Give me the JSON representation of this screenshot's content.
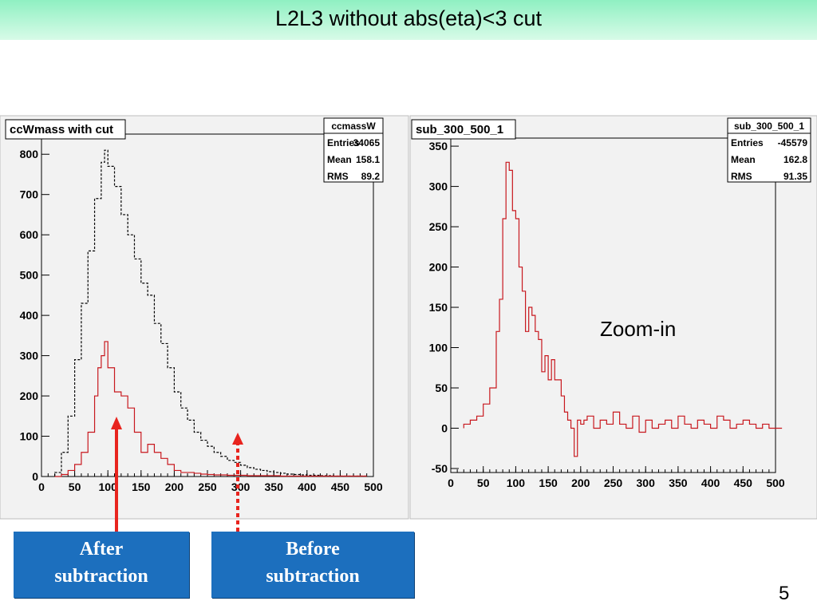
{
  "slide": {
    "title": "L2L3 without abs(eta)<3 cut",
    "page_number": "5",
    "zoom_label": "Zoom-in"
  },
  "callouts": {
    "after": [
      "After",
      "subtraction"
    ],
    "before": [
      "Before",
      "subtraction"
    ],
    "arrow_color_after": "#e8241e",
    "arrow_color_before": "#e8241e",
    "box_color": "#1c6fbe"
  },
  "colors": {
    "title_bar_top": "#8ff0c2",
    "frame_bg": "#f2f2f2",
    "before_line": "#000000",
    "after_line": "#c8181e"
  },
  "chart_data": [
    {
      "type": "line",
      "title": "ccWmass with cut",
      "stats": {
        "name": "ccmassW",
        "rows": [
          [
            "Entries",
            "34065"
          ],
          [
            "Mean",
            "158.1"
          ],
          [
            "RMS",
            "89.2"
          ]
        ]
      },
      "xlim": [
        0,
        500
      ],
      "ylim": [
        0,
        850
      ],
      "xticks": [
        "0",
        "50",
        "100",
        "150",
        "200",
        "250",
        "300",
        "350",
        "400",
        "450",
        "500"
      ],
      "yticks": [
        "0",
        "100",
        "200",
        "300",
        "400",
        "500",
        "600",
        "700",
        "800"
      ],
      "xtick_values": [
        0,
        50,
        100,
        150,
        200,
        250,
        300,
        350,
        400,
        450,
        500
      ],
      "ytick_values": [
        0,
        100,
        200,
        300,
        400,
        500,
        600,
        700,
        800
      ],
      "series": [
        {
          "style": "dashed",
          "color": "#000000",
          "x": [
            20,
            30,
            40,
            50,
            60,
            70,
            80,
            90,
            95,
            100,
            110,
            120,
            130,
            140,
            150,
            160,
            170,
            180,
            190,
            200,
            210,
            220,
            230,
            240,
            250,
            260,
            270,
            280,
            290,
            300,
            310,
            320,
            330,
            340,
            350,
            360,
            370,
            380,
            390,
            400,
            410,
            420,
            430,
            440,
            450,
            460,
            470,
            480
          ],
          "y": [
            10,
            60,
            150,
            290,
            430,
            560,
            690,
            780,
            810,
            770,
            720,
            650,
            600,
            540,
            480,
            450,
            380,
            330,
            270,
            210,
            170,
            140,
            110,
            90,
            75,
            60,
            50,
            40,
            35,
            28,
            22,
            18,
            15,
            12,
            10,
            8,
            6,
            5,
            4,
            3,
            3,
            2,
            2,
            1,
            1,
            1,
            1,
            1
          ]
        },
        {
          "style": "solid",
          "color": "#c8181e",
          "x": [
            20,
            30,
            40,
            50,
            60,
            70,
            80,
            85,
            90,
            95,
            100,
            110,
            120,
            130,
            140,
            150,
            160,
            170,
            180,
            190,
            200,
            210,
            220,
            230,
            240,
            250,
            260,
            270,
            280,
            290,
            300,
            310,
            320,
            330,
            340,
            350,
            360,
            370,
            380,
            390,
            400,
            410,
            420,
            430,
            440,
            450,
            460,
            470,
            480
          ],
          "y": [
            0,
            5,
            15,
            30,
            60,
            110,
            200,
            270,
            300,
            335,
            270,
            210,
            200,
            170,
            110,
            60,
            80,
            60,
            45,
            30,
            15,
            10,
            10,
            8,
            6,
            5,
            4,
            4,
            3,
            3,
            3,
            2,
            2,
            2,
            2,
            2,
            1,
            1,
            1,
            1,
            1,
            1,
            1,
            1,
            1,
            1,
            1,
            1,
            1
          ]
        }
      ]
    },
    {
      "type": "line",
      "title": "sub_300_500_1",
      "stats": {
        "name": "sub_300_500_1",
        "rows": [
          [
            "Entries",
            "-45579"
          ],
          [
            "Mean",
            "162.8"
          ],
          [
            "RMS",
            "91.35"
          ]
        ]
      },
      "xlim": [
        0,
        500
      ],
      "ylim": [
        -55,
        360
      ],
      "xticks": [
        "0",
        "50",
        "100",
        "150",
        "200",
        "250",
        "300",
        "350",
        "400",
        "450",
        "500"
      ],
      "yticks": [
        "-50",
        "0",
        "50",
        "100",
        "150",
        "200",
        "250",
        "300",
        "350"
      ],
      "xtick_values": [
        0,
        50,
        100,
        150,
        200,
        250,
        300,
        350,
        400,
        450,
        500
      ],
      "ytick_values": [
        -50,
        0,
        50,
        100,
        150,
        200,
        250,
        300,
        350
      ],
      "series": [
        {
          "style": "solid",
          "color": "#c8181e",
          "x": [
            20,
            30,
            40,
            50,
            60,
            70,
            75,
            80,
            85,
            90,
            95,
            100,
            105,
            110,
            115,
            120,
            125,
            130,
            135,
            140,
            145,
            150,
            155,
            160,
            165,
            170,
            175,
            180,
            185,
            190,
            195,
            200,
            205,
            210,
            220,
            230,
            240,
            250,
            260,
            270,
            280,
            290,
            300,
            310,
            320,
            330,
            340,
            350,
            360,
            370,
            380,
            390,
            400,
            410,
            420,
            430,
            440,
            450,
            460,
            470,
            480,
            490,
            500
          ],
          "y": [
            5,
            10,
            15,
            30,
            50,
            120,
            160,
            260,
            330,
            320,
            270,
            260,
            200,
            170,
            120,
            150,
            140,
            120,
            110,
            70,
            90,
            60,
            85,
            60,
            60,
            40,
            20,
            10,
            0,
            -35,
            10,
            5,
            10,
            15,
            0,
            10,
            5,
            20,
            5,
            0,
            15,
            -5,
            10,
            0,
            5,
            10,
            0,
            15,
            5,
            0,
            10,
            5,
            0,
            15,
            10,
            0,
            5,
            10,
            5,
            0,
            5,
            0,
            0
          ]
        }
      ]
    }
  ]
}
